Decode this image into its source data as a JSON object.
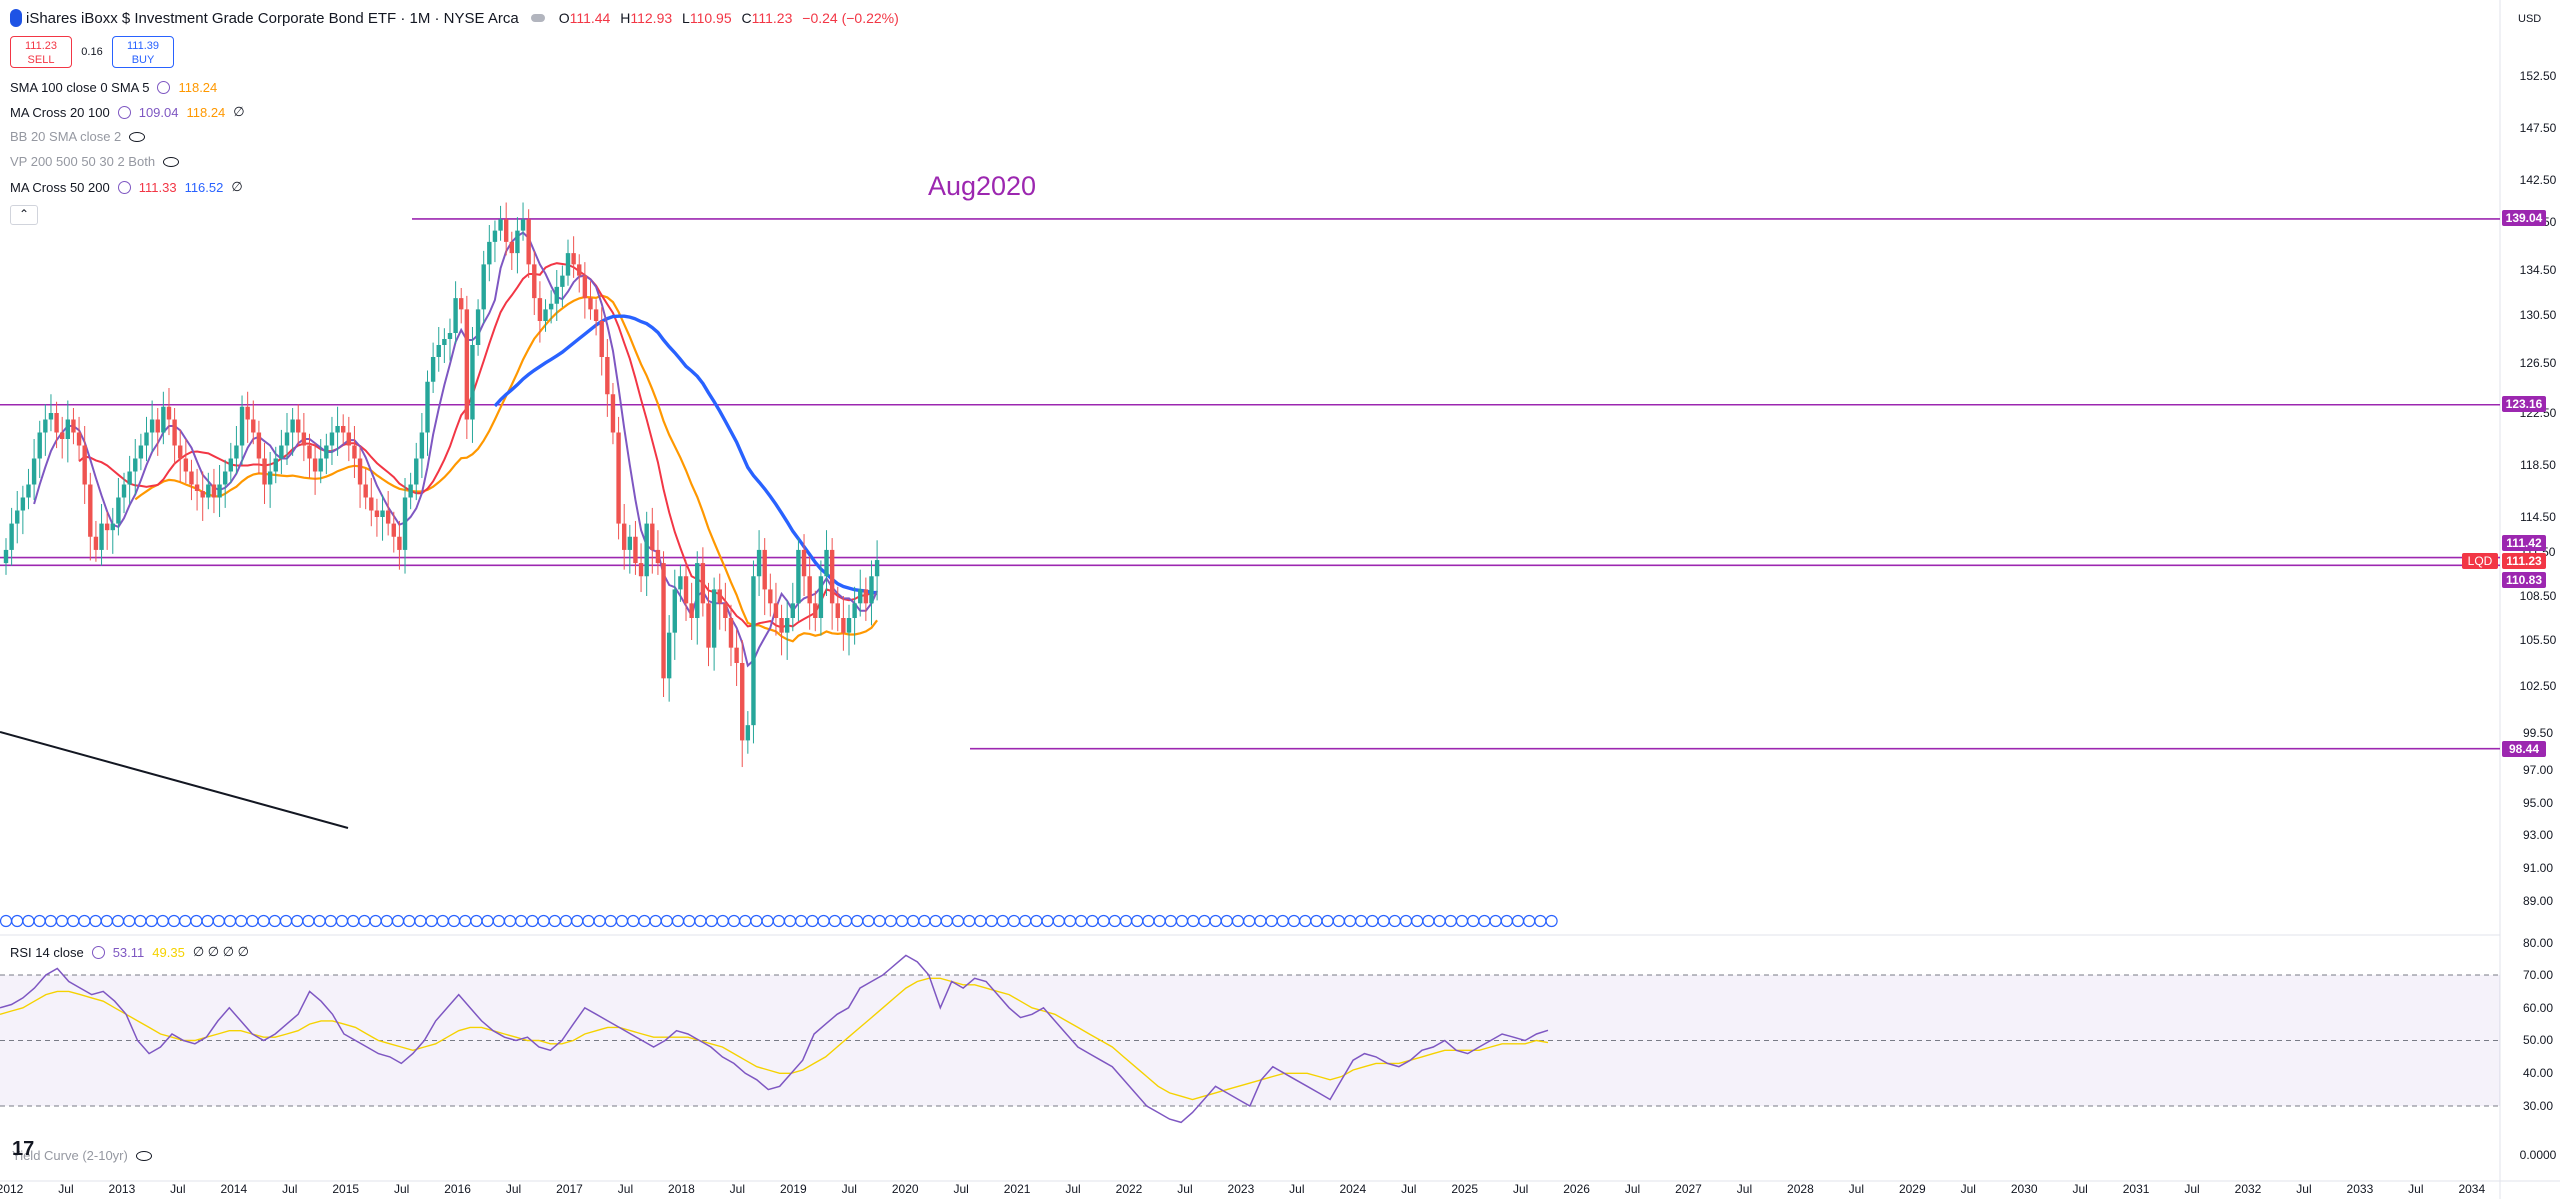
{
  "header": {
    "title": "iShares iBoxx $ Investment Grade Corporate Bond ETF · 1M · NYSE Arca",
    "ohlc": {
      "o_label": "O",
      "o": "111.44",
      "h_label": "H",
      "h": "112.93",
      "l_label": "L",
      "l": "110.95",
      "c_label": "C",
      "c": "111.23",
      "change": "−0.24 (−0.22%)"
    }
  },
  "trade": {
    "sell_price": "111.23",
    "sell_label": "SELL",
    "spread": "0.16",
    "buy_price": "111.39",
    "buy_label": "BUY"
  },
  "indicators": [
    {
      "name": "SMA 100 close 0 SMA 5",
      "values": [
        "118.24"
      ],
      "colors": [
        "#ff9800"
      ],
      "faded": false,
      "icon": "settings",
      "tail": ""
    },
    {
      "name": "MA Cross 20 100",
      "values": [
        "109.04",
        "118.24"
      ],
      "colors": [
        "#7e57c2",
        "#ff9800"
      ],
      "faded": false,
      "icon": "settings",
      "tail": "∅"
    },
    {
      "name": "BB 20 SMA close 2",
      "values": [],
      "colors": [],
      "faded": true,
      "icon": "eye-hidden",
      "tail": ""
    },
    {
      "name": "VP 200 500 50 30 2 Both",
      "values": [],
      "colors": [],
      "faded": true,
      "icon": "eye-hidden",
      "tail": ""
    },
    {
      "name": "MA Cross 50 200",
      "values": [
        "111.33",
        "116.52"
      ],
      "colors": [
        "#f23645",
        "#2962ff"
      ],
      "faded": false,
      "icon": "settings",
      "tail": "∅"
    }
  ],
  "collapse_icon": "chevron-up-icon",
  "rsi_legend": {
    "name": "RSI 14 close",
    "values": [
      "53.11",
      "49.35"
    ],
    "colors": [
      "#7e57c2",
      "#f5d200"
    ],
    "tail": "∅ ∅ ∅ ∅"
  },
  "yield_legend": {
    "name": "Yield Curve (2-10yr)"
  },
  "currency": "USD",
  "symbol_tag": "LQD",
  "colors": {
    "up": "#26a69a",
    "down": "#ef5350",
    "hline": "#9c27b0",
    "ma_fast": "#7e57c2",
    "ma_slow": "#ff9800",
    "ma50": "#f23645",
    "ma200": "#2962ff",
    "rsi": "#7e57c2",
    "rsi_ma": "#f5d200"
  },
  "chart_data": {
    "type": "candlestick",
    "title": "iShares iBoxx $ Investment Grade Corporate Bond ETF · 1M · NYSE Arca",
    "annotation": "Aug2020",
    "y_ticks": [
      "152.50",
      "147.50",
      "142.50",
      "138.50",
      "134.50",
      "130.50",
      "126.50",
      "122.50",
      "118.50",
      "114.50",
      "111.50",
      "108.50",
      "105.50",
      "102.50",
      "99.50",
      "97.00",
      "95.00",
      "93.00",
      "91.00",
      "89.00"
    ],
    "x_ticks": [
      "2012",
      "Jul",
      "2013",
      "Jul",
      "2014",
      "Jul",
      "2015",
      "Jul",
      "2016",
      "Jul",
      "2017",
      "Jul",
      "2018",
      "Jul",
      "2019",
      "Jul",
      "2020",
      "Jul",
      "2021",
      "Jul",
      "2022",
      "Jul",
      "2023",
      "Jul",
      "2024",
      "Jul",
      "2025",
      "Jul",
      "2026",
      "Jul",
      "2027",
      "Jul",
      "2028",
      "Jul",
      "2029",
      "Jul",
      "2030",
      "Jul",
      "2031",
      "Jul",
      "2032",
      "Jul",
      "2033",
      "Jul",
      "2034"
    ],
    "horizontal_levels": [
      {
        "label": "139.04",
        "value": 139.04
      },
      {
        "label": "123.16",
        "value": 123.16
      },
      {
        "label": "111.42",
        "value": 111.42
      },
      {
        "label": "110.83",
        "value": 110.83
      },
      {
        "label": "98.44",
        "value": 98.44
      }
    ],
    "last_price": "111.23",
    "candles_close": [
      112,
      114,
      115,
      116,
      117,
      119,
      121,
      122,
      122.5,
      121,
      120.5,
      122,
      121,
      120,
      117,
      113,
      112,
      114,
      113.5,
      114,
      116,
      117,
      118,
      119,
      120,
      121,
      122,
      121,
      123,
      122,
      120,
      119,
      118,
      117,
      116.5,
      116,
      117,
      116,
      117,
      118,
      119,
      120,
      123,
      122,
      121,
      119,
      117,
      118,
      119,
      120,
      121,
      122,
      121,
      120,
      119,
      118,
      119,
      120,
      121,
      121.5,
      121,
      120,
      119,
      117,
      116,
      115,
      114.5,
      115,
      114,
      113,
      112,
      116,
      117,
      119,
      121,
      125,
      127,
      128,
      128.5,
      129,
      132,
      131,
      122,
      128,
      131,
      135,
      137,
      138,
      139,
      137,
      136,
      138,
      139,
      135,
      132,
      130,
      131,
      131.5,
      133,
      134,
      136,
      135,
      134,
      132,
      131,
      130,
      127,
      124,
      121,
      114,
      112,
      113,
      111,
      110,
      114,
      112,
      111,
      103,
      106,
      109,
      110,
      108,
      107,
      111,
      108,
      105,
      109,
      108,
      107,
      105,
      104,
      99,
      100,
      110,
      112,
      109,
      108,
      107,
      106,
      107,
      108,
      112,
      110,
      108,
      107,
      110,
      112,
      108,
      107,
      106,
      107,
      108,
      109,
      108,
      110,
      111.23
    ],
    "rsi_ticks": [
      "80.00",
      "70.00",
      "60.00",
      "50.00",
      "40.00",
      "30.00",
      "0.0000"
    ],
    "rsi_levels": {
      "upper": 70,
      "middle": 50,
      "lower": 30
    },
    "rsi_values": [
      60,
      61,
      63,
      66,
      70,
      72,
      68,
      66,
      64,
      65,
      62,
      58,
      50,
      46,
      48,
      52,
      50,
      49,
      51,
      56,
      60,
      56,
      52,
      50,
      52,
      55,
      58,
      65,
      62,
      58,
      52,
      50,
      48,
      46,
      45,
      43,
      46,
      50,
      56,
      60,
      64,
      60,
      56,
      53,
      51,
      50,
      51,
      48,
      47,
      50,
      55,
      60,
      58,
      56,
      54,
      52,
      50,
      48,
      50,
      53,
      52,
      50,
      48,
      45,
      43,
      40,
      38,
      35,
      36,
      40,
      44,
      52,
      55,
      58,
      60,
      66,
      68,
      70,
      73,
      76,
      74,
      70,
      60,
      68,
      66,
      69,
      68,
      64,
      60,
      57,
      58,
      60,
      56,
      52,
      48,
      46,
      44,
      42,
      38,
      34,
      30,
      28,
      26,
      25,
      28,
      32,
      36,
      34,
      32,
      30,
      38,
      42,
      40,
      38,
      36,
      34,
      32,
      38,
      44,
      46,
      45,
      43,
      42,
      44,
      47,
      48,
      50,
      47,
      46,
      48,
      50,
      52,
      51,
      50,
      52,
      53.11
    ],
    "rsi_ma_values": [
      58,
      59,
      60,
      62,
      64,
      65,
      65,
      64,
      63,
      62,
      60,
      58,
      56,
      54,
      52,
      51,
      50,
      50,
      51,
      52,
      53,
      53,
      52,
      51,
      51,
      52,
      53,
      55,
      56,
      56,
      55,
      54,
      52,
      50,
      49,
      48,
      47,
      48,
      49,
      51,
      53,
      54,
      54,
      53,
      52,
      51,
      50,
      50,
      49,
      49,
      50,
      52,
      53,
      54,
      54,
      53,
      52,
      51,
      51,
      51,
      51,
      50,
      49,
      48,
      46,
      44,
      42,
      41,
      40,
      40,
      41,
      43,
      45,
      48,
      51,
      54,
      57,
      60,
      63,
      66,
      68,
      69,
      69,
      68,
      67,
      67,
      66,
      65,
      64,
      62,
      60,
      59,
      58,
      56,
      54,
      52,
      50,
      48,
      45,
      42,
      39,
      36,
      34,
      33,
      32,
      33,
      34,
      35,
      36,
      37,
      38,
      39,
      40,
      40,
      40,
      39,
      38,
      39,
      41,
      42,
      43,
      43,
      43,
      44,
      45,
      46,
      47,
      47,
      47,
      47,
      48,
      49,
      49,
      49,
      50,
      49.35
    ]
  }
}
